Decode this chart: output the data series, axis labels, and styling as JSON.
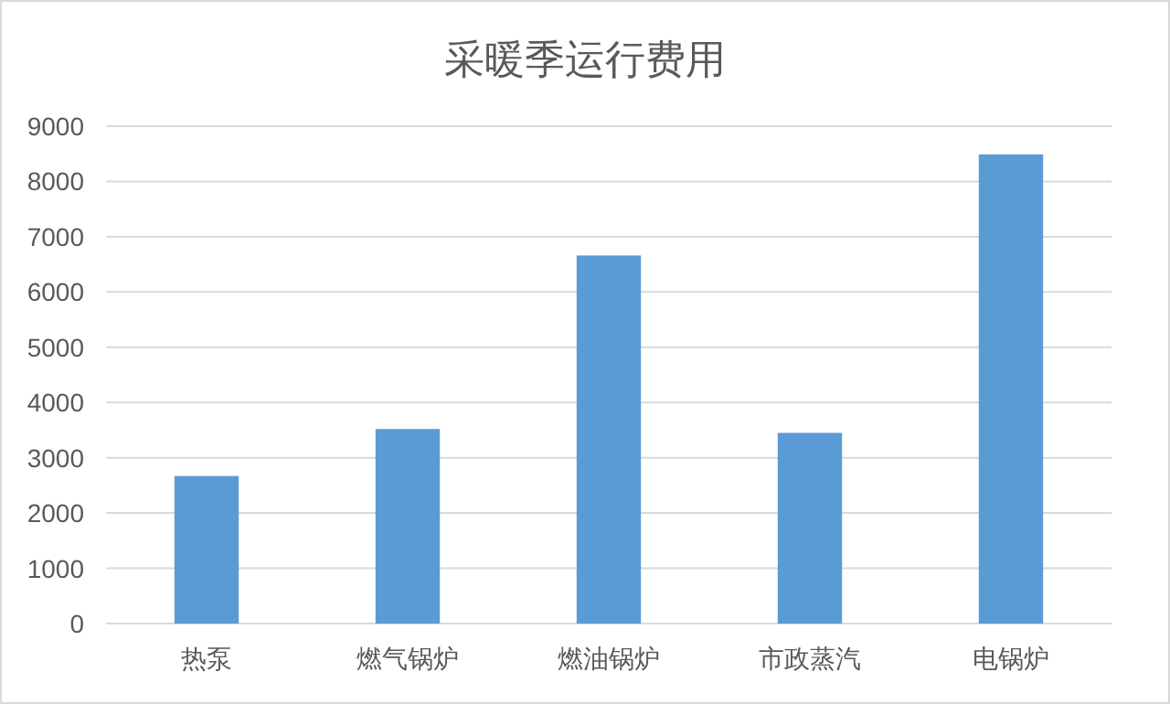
{
  "chart_data": {
    "type": "bar",
    "title": "采暖季运行费用",
    "categories": [
      "热泵",
      "燃气锅炉",
      "燃油锅炉",
      "市政蒸汽",
      "电锅炉"
    ],
    "values": [
      2670,
      3520,
      6660,
      3450,
      8490
    ],
    "color": "#5b9bd5",
    "ylim": [
      0,
      9000
    ],
    "yticks": [
      0,
      1000,
      2000,
      3000,
      4000,
      5000,
      6000,
      7000,
      8000,
      9000
    ],
    "grid": "y"
  }
}
